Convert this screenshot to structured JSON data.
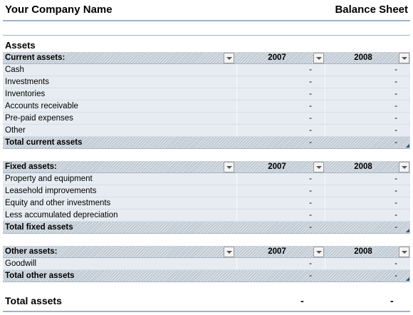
{
  "header": {
    "company": "Your Company Name",
    "title": "Balance Sheet"
  },
  "section_label": "Assets",
  "current": {
    "heading": "Current assets:",
    "years": [
      "2007",
      "2008"
    ],
    "rows": [
      {
        "label": "Cash",
        "v2007": "-",
        "v2008": "-"
      },
      {
        "label": "Investments",
        "v2007": "-",
        "v2008": "-"
      },
      {
        "label": "Inventories",
        "v2007": "-",
        "v2008": "-"
      },
      {
        "label": "Accounts receivable",
        "v2007": "-",
        "v2008": "-"
      },
      {
        "label": "Pre-paid expenses",
        "v2007": "-",
        "v2008": "-"
      },
      {
        "label": "Other",
        "v2007": "-",
        "v2008": "-"
      }
    ],
    "total": {
      "label": "Total current assets",
      "v2007": "-",
      "v2008": "-"
    }
  },
  "fixed": {
    "heading": "Fixed assets:",
    "years": [
      "2007",
      "2008"
    ],
    "rows": [
      {
        "label": "Property and equipment",
        "v2007": "-",
        "v2008": "-"
      },
      {
        "label": "Leasehold improvements",
        "v2007": "-",
        "v2008": "-"
      },
      {
        "label": "Equity and other investments",
        "v2007": "-",
        "v2008": "-"
      },
      {
        "label": "Less accumulated depreciation",
        "v2007": "-",
        "v2008": "-"
      }
    ],
    "total": {
      "label": "Total fixed assets",
      "v2007": "-",
      "v2008": "-"
    }
  },
  "other": {
    "heading": "Other assets:",
    "years": [
      "2007",
      "2008"
    ],
    "rows": [
      {
        "label": "Goodwill",
        "v2007": "-",
        "v2008": "-"
      }
    ],
    "total": {
      "label": "Total other assets",
      "v2007": "-",
      "v2008": "-"
    }
  },
  "grand_total": {
    "label": "Total assets",
    "v2007": "-",
    "v2008": "-"
  },
  "colors": {
    "accent_line": "#9fb3c8",
    "row_fill": "#e6ecf1",
    "hatch_fill": "#bfc9d3"
  },
  "icons": {
    "filter": "dropdown-arrow-icon",
    "resize": "table-resize-handle-icon"
  }
}
